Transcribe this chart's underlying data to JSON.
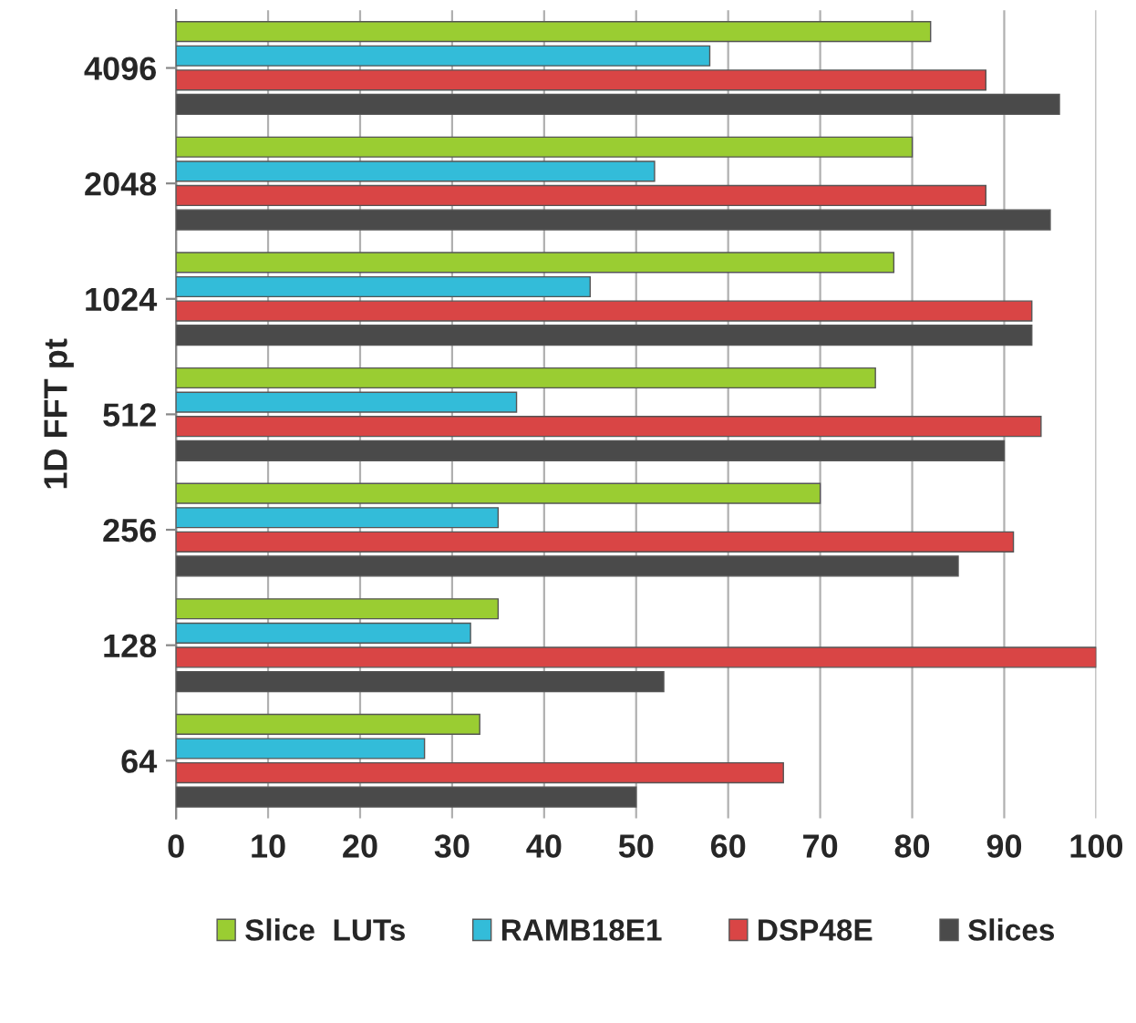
{
  "chart_data": {
    "type": "bar",
    "orientation": "horizontal",
    "ylabel": "1D FFT pt",
    "categories": [
      "4096",
      "2048",
      "1024",
      "512",
      "256",
      "128",
      "64"
    ],
    "series": [
      {
        "name": "Slice  LUTs",
        "color": "#9acd32",
        "values": [
          82,
          80,
          78,
          76,
          70,
          35,
          33
        ]
      },
      {
        "name": "RAMB18E1",
        "color": "#33bcd9",
        "values": [
          58,
          52,
          45,
          37,
          35,
          32,
          27
        ]
      },
      {
        "name": "DSP48E",
        "color": "#d94545",
        "values": [
          88,
          88,
          93,
          94,
          91,
          100,
          66
        ]
      },
      {
        "name": "Slices",
        "color": "#4a4a4a",
        "values": [
          96,
          95,
          93,
          90,
          85,
          53,
          50
        ]
      }
    ],
    "xlim": [
      0,
      100
    ],
    "xticks": [
      0,
      10,
      20,
      30,
      40,
      50,
      60,
      70,
      80,
      90,
      100
    ],
    "grid": "x",
    "legend": "bottom"
  }
}
